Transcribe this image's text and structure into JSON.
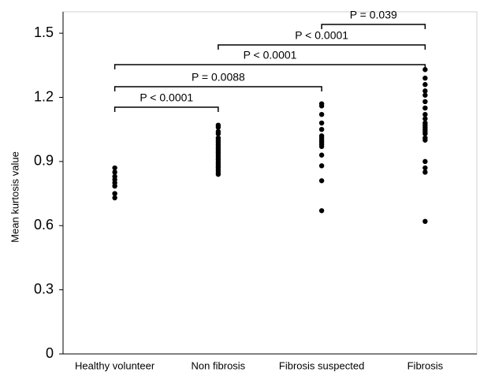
{
  "chart_data": {
    "type": "strip",
    "y_label": "Mean kurtosis value",
    "categories": [
      "Healthy volunteer",
      "Non fibrosis",
      "Fibrosis suspected",
      "Fibrosis"
    ],
    "values": [
      [
        0.87,
        0.85,
        0.83,
        0.815,
        0.8,
        0.785,
        0.75,
        0.73
      ],
      [
        1.07,
        1.06,
        1.04,
        1.03,
        1.01,
        1.0,
        0.99,
        0.98,
        0.97,
        0.96,
        0.95,
        0.94,
        0.93,
        0.92,
        0.91,
        0.9,
        0.89,
        0.88,
        0.87,
        0.86,
        0.85,
        0.84
      ],
      [
        1.17,
        1.16,
        1.12,
        1.08,
        1.05,
        1.02,
        1.01,
        1.0,
        0.99,
        0.98,
        0.97,
        0.93,
        0.88,
        0.81,
        0.67
      ],
      [
        1.33,
        1.29,
        1.26,
        1.23,
        1.21,
        1.18,
        1.15,
        1.12,
        1.1,
        1.08,
        1.07,
        1.06,
        1.05,
        1.04,
        1.03,
        1.01,
        1.0,
        0.9,
        0.87,
        0.85,
        0.62
      ]
    ],
    "color": "#000000",
    "ylim": [
      0,
      1.6
    ],
    "yticks": [
      0,
      0.3,
      0.6,
      0.9,
      1.2,
      1.5
    ],
    "annotations": [
      "P = 0.039",
      "P < 0.0001",
      "P < 0.0001",
      "P = 0.0088",
      "P < 0.0001"
    ]
  }
}
